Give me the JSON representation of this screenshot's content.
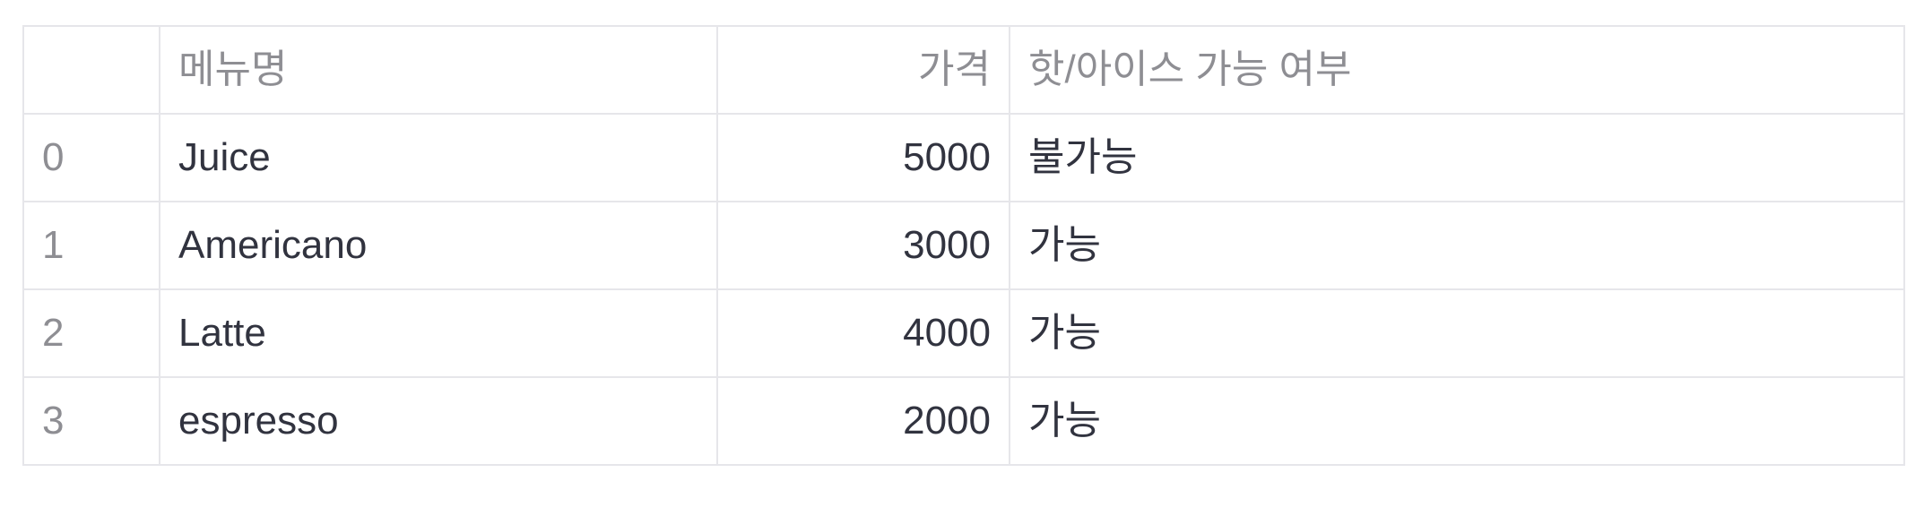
{
  "table": {
    "columns": {
      "index": "",
      "menu_name": "메뉴명",
      "price": "가격",
      "hot_ice": "핫/아이스 가능 여부"
    },
    "rows": [
      {
        "index": "0",
        "menu_name": "Juice",
        "price": "5000",
        "hot_ice": "불가능"
      },
      {
        "index": "1",
        "menu_name": "Americano",
        "price": "3000",
        "hot_ice": "가능"
      },
      {
        "index": "2",
        "menu_name": "Latte",
        "price": "4000",
        "hot_ice": "가능"
      },
      {
        "index": "3",
        "menu_name": "espresso",
        "price": "2000",
        "hot_ice": "가능"
      }
    ]
  }
}
